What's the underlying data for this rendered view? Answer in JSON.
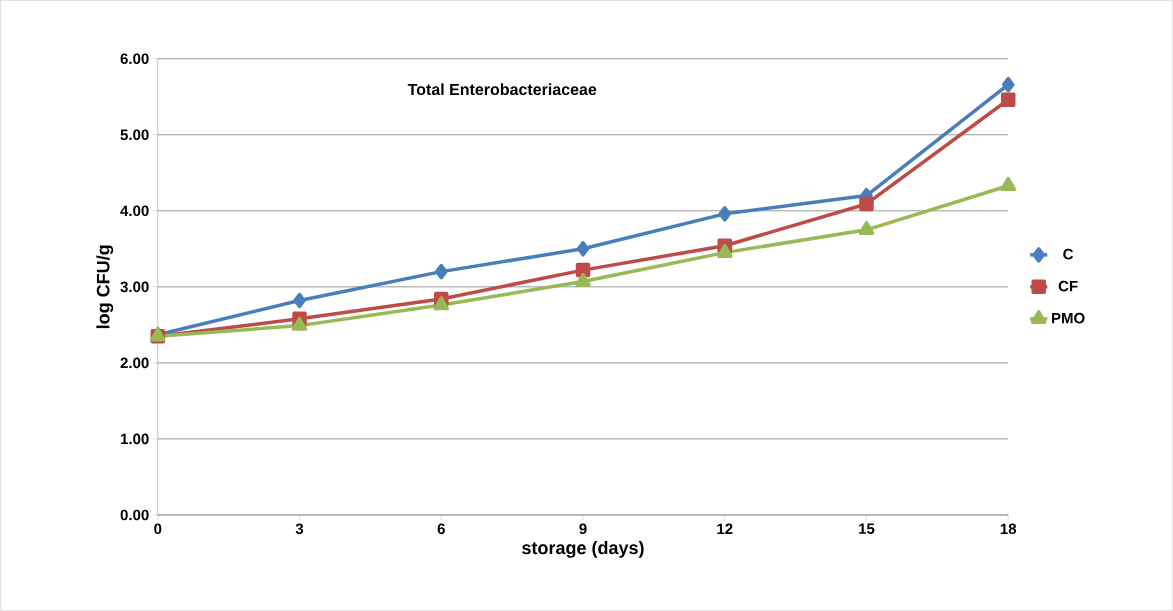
{
  "chart_data": {
    "type": "line",
    "title": "Total Enterobacteriaceae",
    "xlabel": "storage (days)",
    "ylabel": "log CFU/g",
    "x": [
      0,
      3,
      6,
      9,
      12,
      15,
      18
    ],
    "series": [
      {
        "name": "C",
        "color": "#4a7ebb",
        "marker": "diamond",
        "values": [
          2.37,
          2.82,
          3.2,
          3.5,
          3.96,
          4.2,
          5.66
        ]
      },
      {
        "name": "CF",
        "color": "#be4b48",
        "marker": "square",
        "values": [
          2.35,
          2.58,
          2.84,
          3.22,
          3.54,
          4.09,
          5.46
        ]
      },
      {
        "name": "PMO",
        "color": "#98b954",
        "marker": "triangle",
        "values": [
          2.35,
          2.49,
          2.76,
          3.07,
          3.45,
          3.75,
          4.33
        ]
      }
    ],
    "xlim": [
      0,
      18
    ],
    "xticks": [
      0,
      3,
      6,
      9,
      12,
      15,
      18
    ],
    "ylim": [
      0,
      6
    ],
    "yticks": [
      {
        "value": 0,
        "label": "0.00"
      },
      {
        "value": 1,
        "label": "1.00"
      },
      {
        "value": 2,
        "label": "2.00"
      },
      {
        "value": 3,
        "label": "3.00"
      },
      {
        "value": 4,
        "label": "4.00"
      },
      {
        "value": 5,
        "label": "5.00"
      },
      {
        "value": 6,
        "label": "6.00"
      }
    ],
    "grid": "y",
    "legend": "right"
  }
}
